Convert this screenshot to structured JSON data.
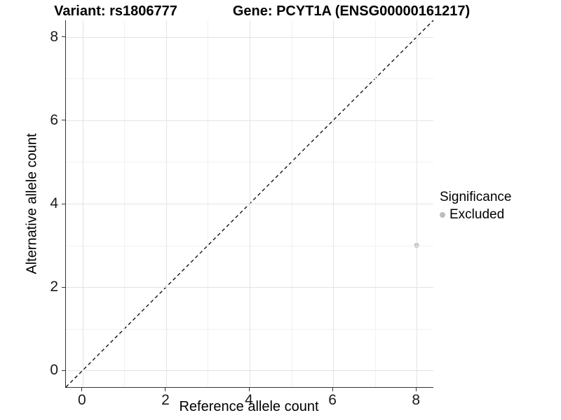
{
  "titles": {
    "left": "Variant: rs1806777",
    "right": "Gene: PCYT1A (ENSG00000161217)"
  },
  "axes": {
    "x": {
      "label": "Reference allele count"
    },
    "y": {
      "label": "Alternative allele count"
    }
  },
  "legend": {
    "title": "Significance",
    "items": [
      {
        "label": "Excluded",
        "color": "#bdbdbd"
      }
    ]
  },
  "chart_data": {
    "type": "scatter",
    "title": "Variant: rs1806777 — Gene: PCYT1A (ENSG00000161217)",
    "xlabel": "Reference allele count",
    "ylabel": "Alternative allele count",
    "xlim": [
      -0.4,
      8.4
    ],
    "ylim": [
      -0.4,
      8.4
    ],
    "x_ticks": [
      0,
      2,
      4,
      6,
      8
    ],
    "y_ticks": [
      0,
      2,
      4,
      6,
      8
    ],
    "x_minor": [
      1,
      3,
      5,
      7
    ],
    "y_minor": [
      1,
      3,
      5,
      7
    ],
    "grid": "major+minor",
    "legend_position": "right",
    "reference_line": {
      "type": "identity",
      "style": "dashed",
      "color": "#000000"
    },
    "series": [
      {
        "name": "Excluded",
        "color": "#bdbdbd",
        "point_radius": 3.5,
        "points": [
          {
            "x": 8,
            "y": 3
          }
        ]
      }
    ],
    "colors": {
      "grid_major": "#e3e3e3",
      "grid_minor": "#f1f1f1",
      "axis_line": "#333333",
      "tick_text": "#1a1a1a"
    }
  }
}
